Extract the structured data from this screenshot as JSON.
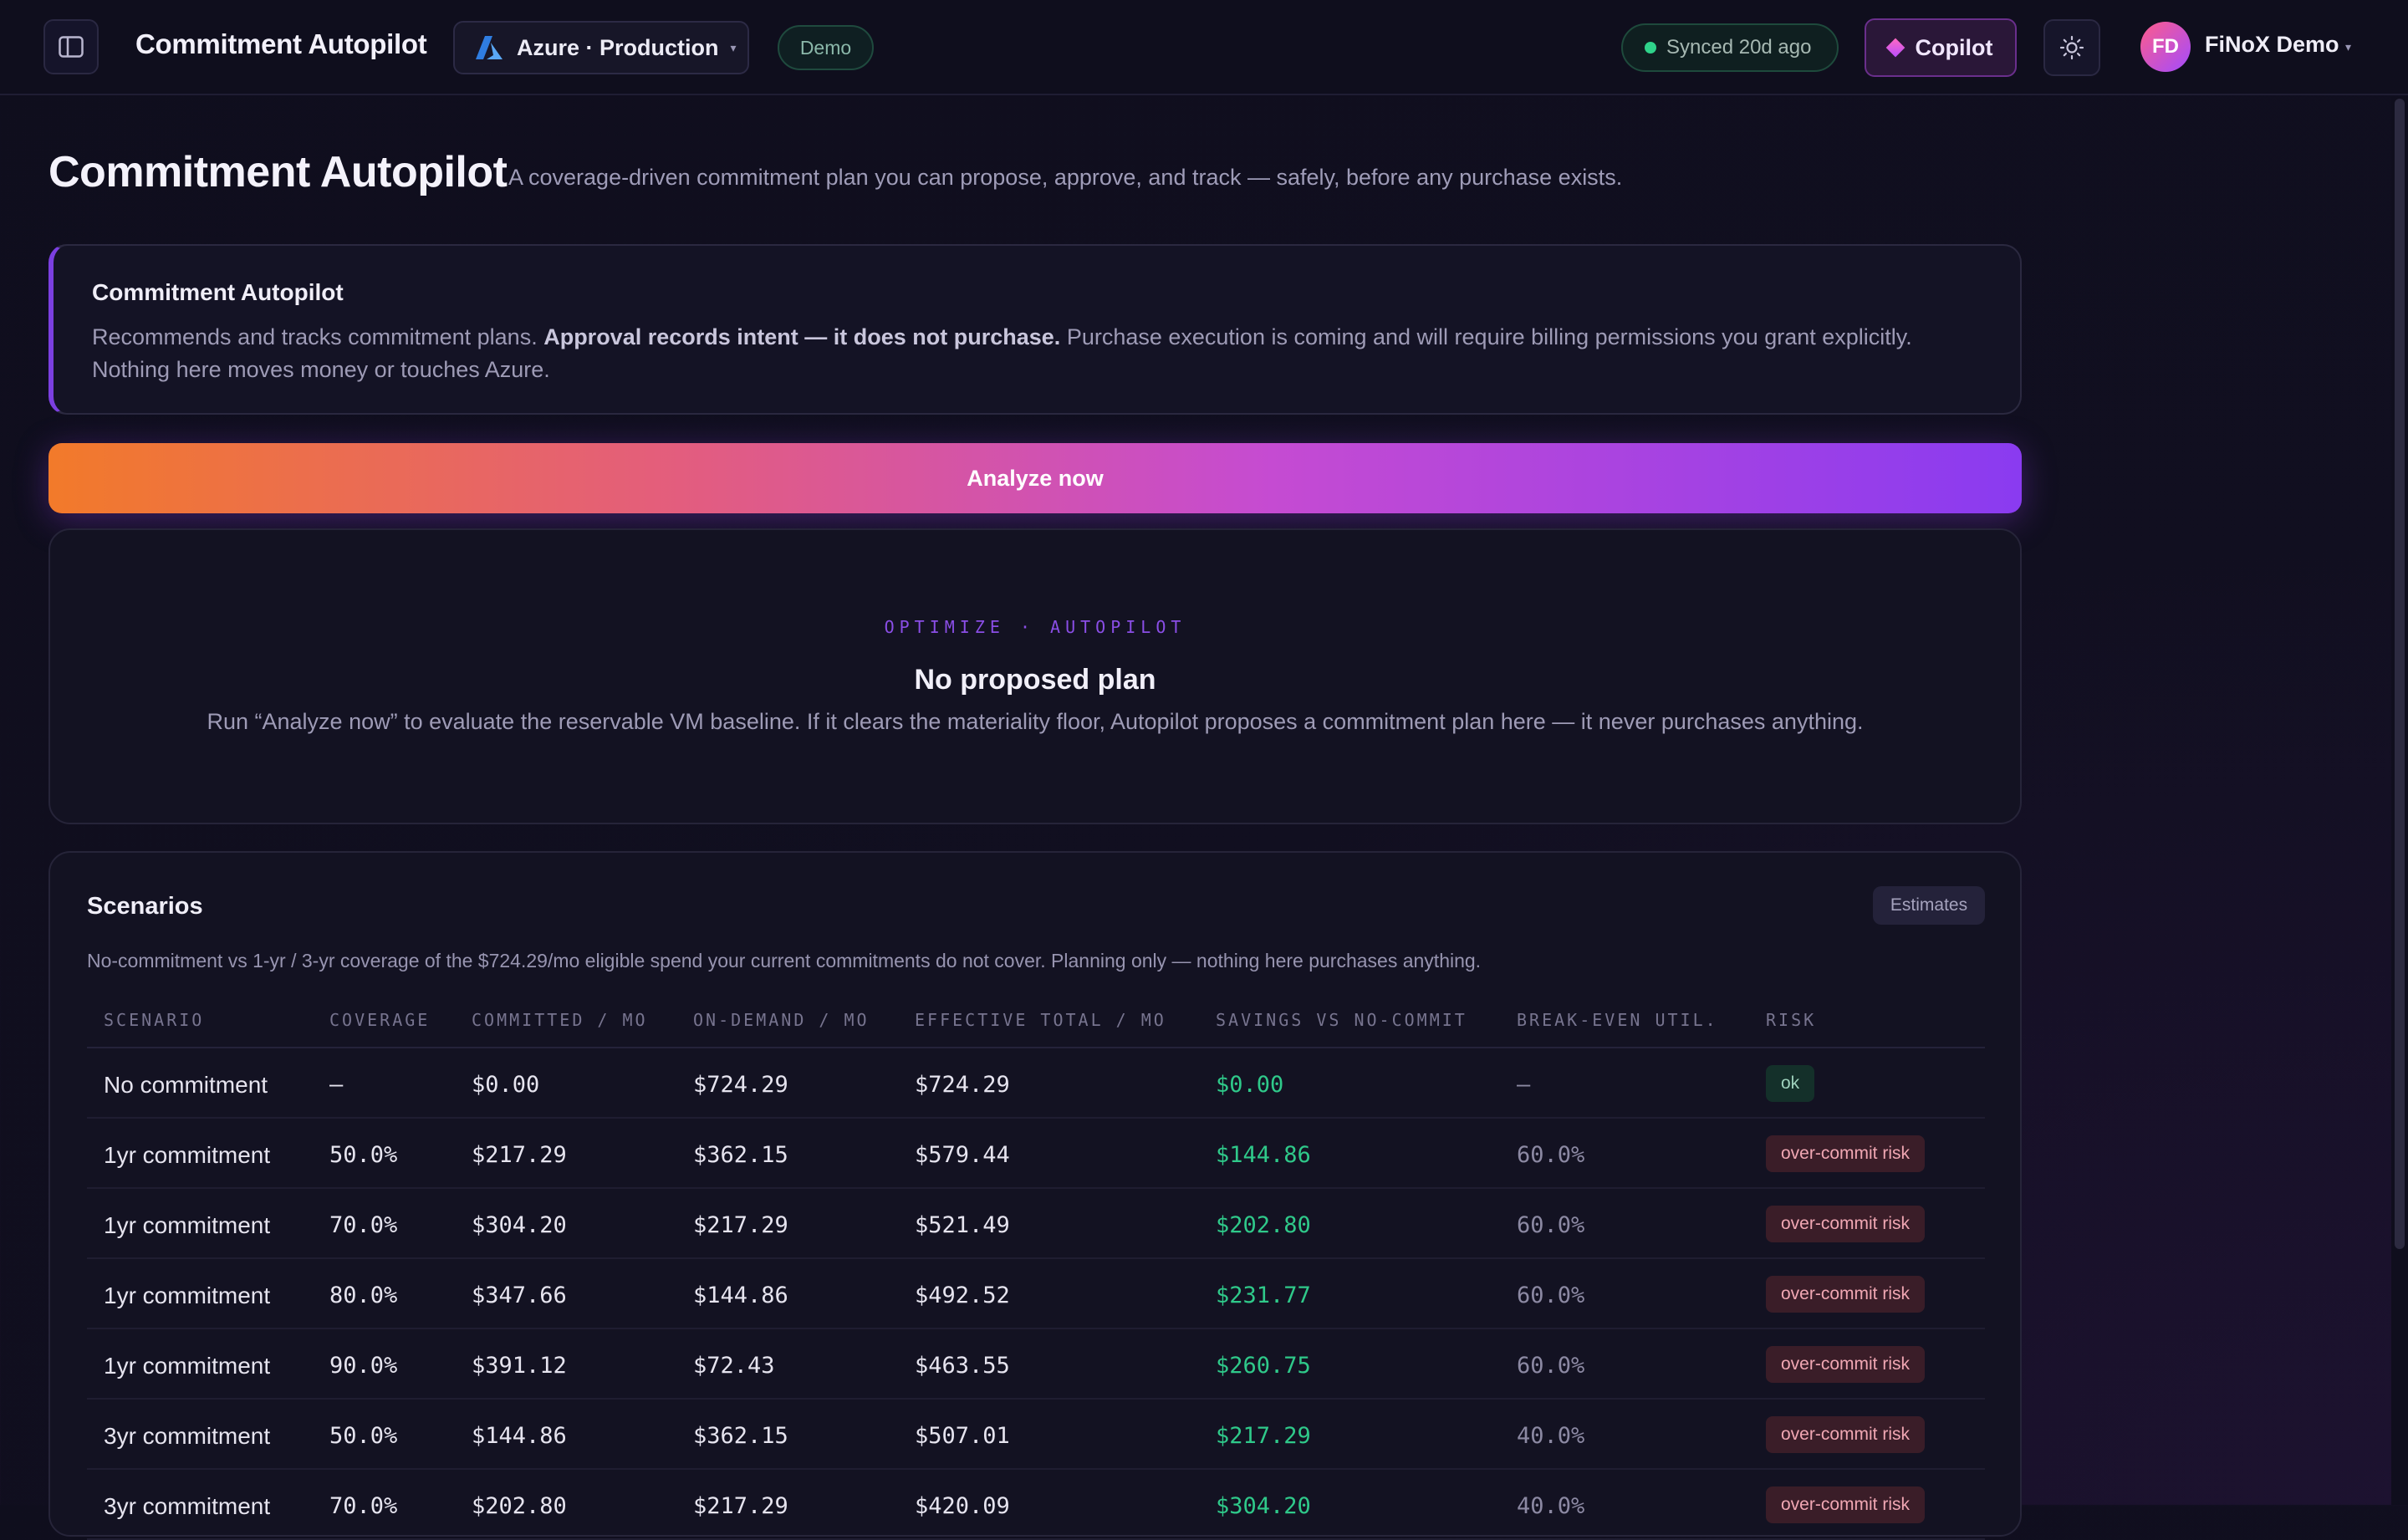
{
  "header": {
    "app_title": "Commitment Autopilot",
    "environment": {
      "label": "Azure · Production",
      "icon": "azure-logo-icon",
      "brand_color": "#2f7de1"
    },
    "demo_badge": "Demo",
    "sync_status": "Synced 20d ago",
    "copilot_label": "Copilot",
    "user": {
      "initials": "FD",
      "name": "FiNoX Demo"
    }
  },
  "page": {
    "title": "Commitment Autopilot",
    "subtitle": "A coverage-driven commitment plan you can propose, approve, and track — safely, before any purchase exists."
  },
  "info_banner": {
    "title": "Commitment Autopilot",
    "body_lead": "Recommends and tracks commitment plans. ",
    "body_strong": "Approval records intent — it does not purchase.",
    "body_tail": " Purchase execution is coming and will require billing permissions you grant explicitly. Nothing here moves money or touches Azure."
  },
  "analyze_button": "Analyze now",
  "empty_state": {
    "kicker": "OPTIMIZE · AUTOPILOT",
    "title": "No proposed plan",
    "body": "Run “Analyze now” to evaluate the reservable VM baseline. If it clears the materiality floor, Autopilot proposes a commitment plan here — it never purchases anything."
  },
  "scenarios": {
    "title": "Scenarios",
    "badge": "Estimates",
    "description": "No-commitment vs 1-yr / 3-yr coverage of the $724.29/mo eligible spend your current commitments do not cover. Planning only — nothing here purchases anything.",
    "columns": [
      "SCENARIO",
      "COVERAGE",
      "COMMITTED / MO",
      "ON-DEMAND / MO",
      "EFFECTIVE TOTAL / MO",
      "SAVINGS VS NO-COMMIT",
      "BREAK-EVEN UTIL.",
      "RISK"
    ],
    "rows": [
      {
        "scenario": "No commitment",
        "coverage": "—",
        "committed": "$0.00",
        "on_demand": "$724.29",
        "effective": "$724.29",
        "savings": "$0.00",
        "break_even": "—",
        "risk": "ok",
        "risk_level": "ok"
      },
      {
        "scenario": "1yr commitment",
        "coverage": "50.0%",
        "committed": "$217.29",
        "on_demand": "$362.15",
        "effective": "$579.44",
        "savings": "$144.86",
        "break_even": "60.0%",
        "risk": "over-commit risk",
        "risk_level": "bad"
      },
      {
        "scenario": "1yr commitment",
        "coverage": "70.0%",
        "committed": "$304.20",
        "on_demand": "$217.29",
        "effective": "$521.49",
        "savings": "$202.80",
        "break_even": "60.0%",
        "risk": "over-commit risk",
        "risk_level": "bad"
      },
      {
        "scenario": "1yr commitment",
        "coverage": "80.0%",
        "committed": "$347.66",
        "on_demand": "$144.86",
        "effective": "$492.52",
        "savings": "$231.77",
        "break_even": "60.0%",
        "risk": "over-commit risk",
        "risk_level": "bad"
      },
      {
        "scenario": "1yr commitment",
        "coverage": "90.0%",
        "committed": "$391.12",
        "on_demand": "$72.43",
        "effective": "$463.55",
        "savings": "$260.75",
        "break_even": "60.0%",
        "risk": "over-commit risk",
        "risk_level": "bad"
      },
      {
        "scenario": "3yr commitment",
        "coverage": "50.0%",
        "committed": "$144.86",
        "on_demand": "$362.15",
        "effective": "$507.01",
        "savings": "$217.29",
        "break_even": "40.0%",
        "risk": "over-commit risk",
        "risk_level": "bad"
      },
      {
        "scenario": "3yr commitment",
        "coverage": "70.0%",
        "committed": "$202.80",
        "on_demand": "$217.29",
        "effective": "$420.09",
        "savings": "$304.20",
        "break_even": "40.0%",
        "risk": "over-commit risk",
        "risk_level": "bad"
      }
    ]
  },
  "colors": {
    "accent_purple": "#8a3bf0",
    "accent_orange": "#f27a2a",
    "savings_green": "#2fc98a",
    "risk_red": "#f0a7b3"
  }
}
